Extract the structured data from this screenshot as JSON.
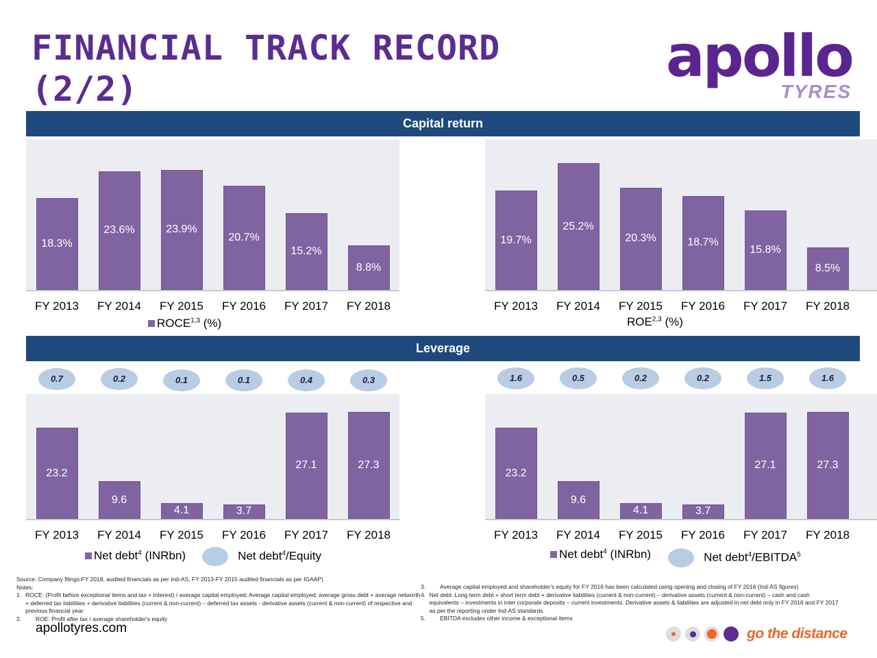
{
  "title_line1": "FINANCIAL TRACK RECORD",
  "title_line2": "(2/2)",
  "logo": {
    "word": "apollo",
    "sub": "TYRES"
  },
  "sections": {
    "capital": "Capital return",
    "leverage": "Leverage"
  },
  "legends": {
    "roce": {
      "name": "ROCE",
      "sup": "1,3",
      "unit": " (%)"
    },
    "roe": {
      "name": "ROE",
      "sup": "2,3",
      "unit": " (%)"
    },
    "nd1": {
      "name": "Net debt",
      "sup": "4",
      "unit": " (INRbn)"
    },
    "nde": {
      "name": "Net debt",
      "sup": "4",
      "unit": "/Equity"
    },
    "nd2": {
      "name": "Net debt",
      "sup": "4",
      "unit": " (INRbn)"
    },
    "ndeb": {
      "name": "Net debt",
      "sup": "4",
      "unit": "/EBITDA",
      "sup2": "5"
    }
  },
  "chart_data": [
    {
      "type": "bar",
      "title": "ROCE (%)",
      "categories": [
        "FY 2013",
        "FY 2014",
        "FY 2015",
        "FY 2016",
        "FY 2017",
        "FY 2018"
      ],
      "values": [
        18.3,
        23.6,
        23.9,
        20.7,
        15.2,
        8.8
      ],
      "labels": [
        "18.3%",
        "23.6%",
        "23.9%",
        "20.7%",
        "15.2%",
        "8.8%"
      ],
      "color": "#8064a2"
    },
    {
      "type": "bar",
      "title": "ROE (%)",
      "categories": [
        "FY 2013",
        "FY 2014",
        "FY 2015",
        "FY 2016",
        "FY 2017",
        "FY 2018"
      ],
      "values": [
        19.7,
        25.2,
        20.3,
        18.7,
        15.8,
        8.5
      ],
      "labels": [
        "19.7%",
        "25.2%",
        "20.3%",
        "18.7%",
        "15.8%",
        "8.5%"
      ],
      "color": "#8064a2"
    },
    {
      "type": "bar",
      "title": "Net debt (INRbn) and Net debt/Equity",
      "categories": [
        "FY 2013",
        "FY 2014",
        "FY 2015",
        "FY 2016",
        "FY 2017",
        "FY 2018"
      ],
      "values": [
        23.2,
        9.6,
        4.1,
        3.7,
        27.1,
        27.3
      ],
      "labels": [
        "23.2",
        "9.6",
        "4.1",
        "3.7",
        "27.1",
        "27.3"
      ],
      "ratio": [
        "0.7",
        "0.2",
        "0.1",
        "0.1",
        "0.4",
        "0.3"
      ],
      "color": "#8064a2"
    },
    {
      "type": "bar",
      "title": "Net debt (INRbn) and Net debt/EBITDA",
      "categories": [
        "FY 2013",
        "FY 2014",
        "FY 2015",
        "FY 2016",
        "FY 2017",
        "FY 2018"
      ],
      "values": [
        23.2,
        9.6,
        4.1,
        3.7,
        27.1,
        27.3
      ],
      "labels": [
        "23.2",
        "9.6",
        "4.1",
        "3.7",
        "27.1",
        "27.3"
      ],
      "ratio": [
        "1.6",
        "0.5",
        "0.2",
        "0.2",
        "1.5",
        "1.6"
      ],
      "color": "#8064a2"
    }
  ],
  "source": "Source: Company filings FY 2018, audited financials as per Ind-AS, FY 2013-FY 2015 audited financials as per IGAAP)",
  "notes_label": "Notes:",
  "notes": [
    {
      "n": "1.",
      "t": "ROCE: (Profit before exceptional items and tax + Interest) / average capital employed; Average capital employed: average gross debt + average networth + deferred tax liabilities + derivative liabilities (current & non-current) – deferred tax assets - derivative  assets (current & non-current) of respective and previous financial year"
    },
    {
      "n": "2.",
      "t": "ROE: Profit after tax / average shareholder's equity"
    },
    {
      "n": "3.",
      "t": "Average capital employed and shareholder's equity for FY 2016 has been calculated using opening and closing of FY 2016 (Ind-AS figures)"
    },
    {
      "n": "4.",
      "t": "Net debt: Long term debt + short term debt + derivative liabilities (current & non-current) – derivative assets (current & non-current) – cash and cash equivalents – investments in inter corporate deposits – current investments. Derivative assets & liabilities are adjusted in net debt only in FY 2016 and FY 2017 as per the reporting under Ind-AS standards"
    },
    {
      "n": "5.",
      "t": "EBITDA excludes other income & exceptional items"
    }
  ],
  "website": "apollotyres.com",
  "tagline": "go the distance"
}
